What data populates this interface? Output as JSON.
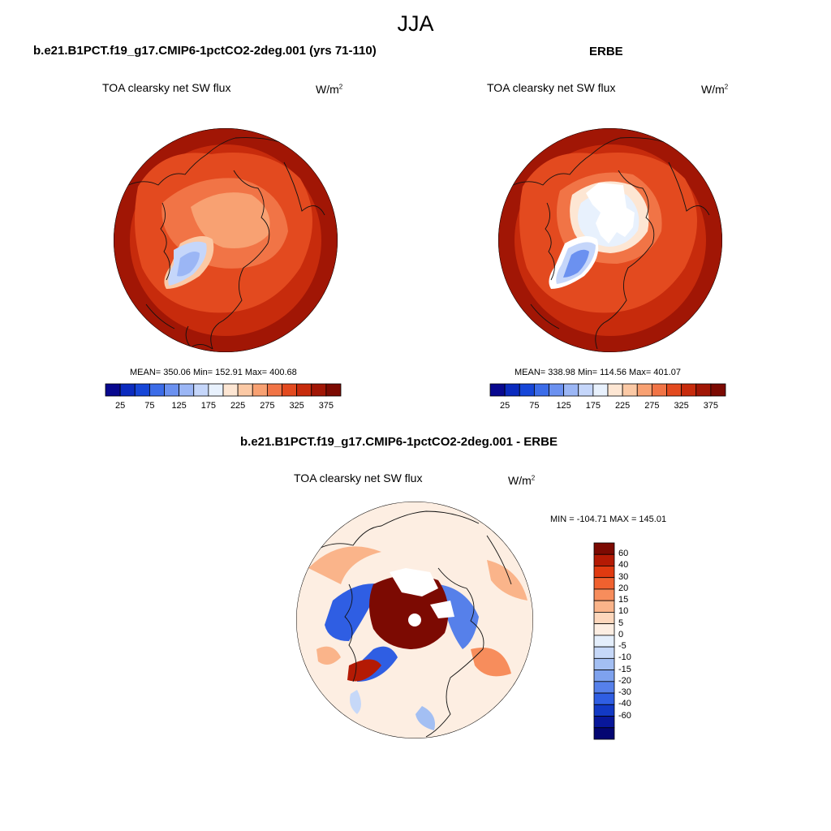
{
  "figure_title": "JJA",
  "panels": [
    {
      "title": "b.e21.B1PCT.f19_g17.CMIP6-1pctCO2-2deg.001 (yrs 71-110)",
      "left_label": "TOA clearsky net SW flux",
      "units": "W/m",
      "units_sup": "2",
      "stats": "MEAN= 350.06  Min= 152.91  Max= 400.68"
    },
    {
      "title": "ERBE",
      "left_label": "TOA clearsky net SW flux",
      "units": "W/m",
      "units_sup": "2",
      "stats": "MEAN= 338.98  Min= 114.56  Max= 401.07"
    },
    {
      "title": "b.e21.B1PCT.f19_g17.CMIP6-1pctCO2-2deg.001 - ERBE",
      "left_label": "TOA clearsky net SW flux",
      "units": "W/m",
      "units_sup": "2",
      "stats": "MIN = -104.71 MAX = 145.01"
    }
  ],
  "colorbar_abs": {
    "colors": [
      "#08088f",
      "#0b2bbf",
      "#1646d8",
      "#3c6ce8",
      "#6b91f0",
      "#9bb6f5",
      "#c5d6fa",
      "#e8f1fd",
      "#fde6d3",
      "#fbc9a5",
      "#f8a172",
      "#f17446",
      "#e34a1f",
      "#c72b0c",
      "#a11605",
      "#7c0a02"
    ],
    "labels": [
      "25",
      "75",
      "125",
      "175",
      "225",
      "275",
      "325",
      "375"
    ]
  },
  "colorbar_diff": {
    "colors": [
      "#7c0a02",
      "#b41a04",
      "#e03a10",
      "#f0612f",
      "#f78d5c",
      "#fab48a",
      "#fdd7bc",
      "#fdeee2",
      "#e4eefb",
      "#c6d8f8",
      "#a3bff3",
      "#7ea2ee",
      "#5680ea",
      "#2f5ee3",
      "#1239c5",
      "#08179a",
      "#040672"
    ],
    "labels": [
      "60",
      "40",
      "30",
      "20",
      "15",
      "10",
      "5",
      "0",
      "-5",
      "-10",
      "-15",
      "-20",
      "-30",
      "-40",
      "-60"
    ]
  }
}
